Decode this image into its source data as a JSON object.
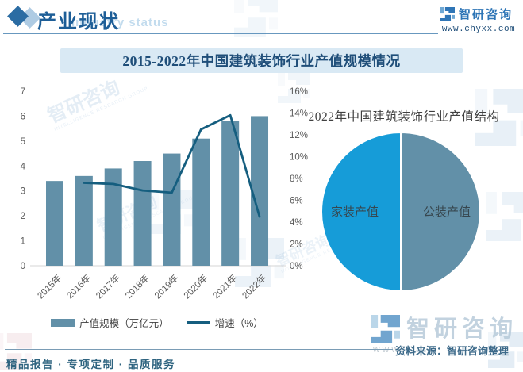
{
  "header": {
    "title": "产业现状",
    "watermark_text": "Industry status",
    "brand_name": "智研咨询",
    "brand_url": "www.chyxx.com"
  },
  "banner": {
    "title": "2015-2022年中国建筑装饰行业产值规模情况"
  },
  "chart_data": [
    {
      "type": "bar",
      "subtype": "combo-bar-line",
      "title": "2015-2022年中国建筑装饰行业产值规模情况",
      "categories": [
        "2015年",
        "2016年",
        "2017年",
        "2018年",
        "2019年",
        "2020年",
        "2021年",
        "2022年"
      ],
      "series": [
        {
          "name": "产值规模（万亿元）",
          "kind": "bar",
          "axis": "left",
          "color": "#6290A8",
          "values": [
            3.4,
            3.6,
            3.9,
            4.2,
            4.5,
            5.1,
            5.8,
            6.0
          ]
        },
        {
          "name": "增速（%）",
          "kind": "line",
          "axis": "right",
          "color": "#155E7F",
          "values": [
            null,
            7.6,
            7.5,
            6.9,
            6.7,
            12.5,
            13.8,
            4.5
          ]
        }
      ],
      "left_axis": {
        "min": 0,
        "max": 7,
        "step": 1
      },
      "right_axis": {
        "min": 0,
        "max": 16,
        "step": 2,
        "suffix": "%"
      },
      "grid": false,
      "legend_position": "bottom"
    },
    {
      "type": "pie",
      "title": "2022年中国建筑装饰行业产值结构",
      "start_angle_deg": 180,
      "slices": [
        {
          "label": "家装产值",
          "value": 50,
          "color": "#169CD8"
        },
        {
          "label": "公装产值",
          "value": 50,
          "color": "#6290A8"
        }
      ]
    }
  ],
  "footer": {
    "tagline": "精品报告 · 专项定制 · 品质服务",
    "source": "资料来源：智研咨询整理",
    "brand_name": "智研咨询",
    "brand_www": "www"
  },
  "watermark": {
    "text": "智研咨询",
    "subtext": "INTELLIGENCE RESEARCH GROUP"
  },
  "colors": {
    "accent_dark_blue": "#1F4E79",
    "banner_bg": "#D9E9F4",
    "axis_text": "#595959",
    "bar": "#6290A8",
    "line": "#155E7F",
    "pie_home": "#169CD8",
    "pie_public": "#6290A8"
  }
}
